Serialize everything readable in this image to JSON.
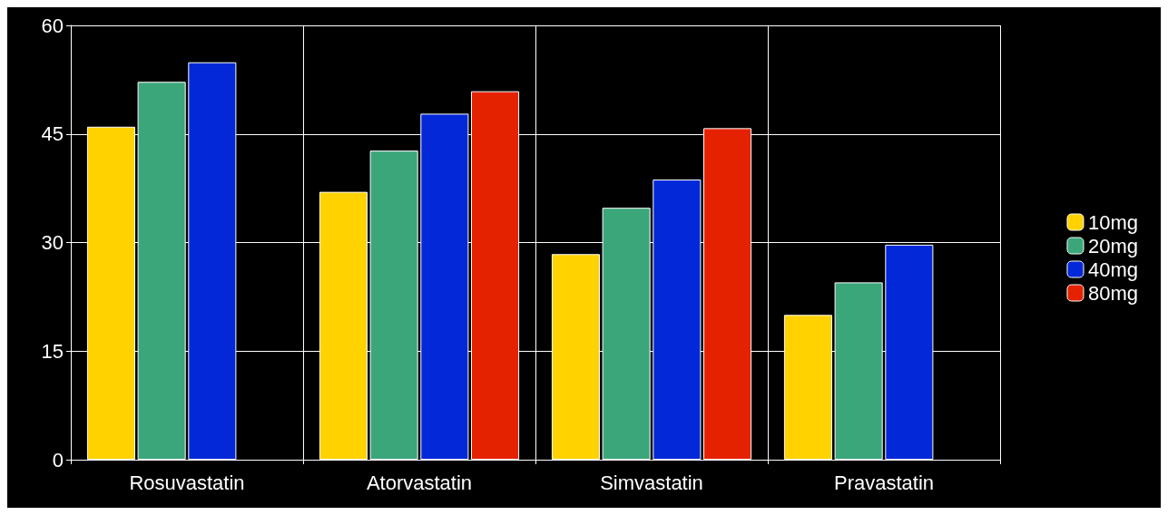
{
  "chart_data": {
    "type": "bar",
    "categories": [
      "Rosuvastatin",
      "Atorvastatin",
      "Simvastatin",
      "Pravastatin"
    ],
    "series": [
      {
        "name": "10mg",
        "color": "#ffd200",
        "values": [
          46,
          37,
          28.4,
          20
        ]
      },
      {
        "name": "20mg",
        "color": "#3ca67b",
        "values": [
          52.2,
          42.7,
          34.8,
          24.5
        ]
      },
      {
        "name": "40mg",
        "color": "#0228d8",
        "values": [
          54.9,
          47.8,
          38.7,
          29.7
        ]
      },
      {
        "name": "80mg",
        "color": "#e52200",
        "values": [
          null,
          50.9,
          45.8,
          null
        ]
      }
    ],
    "ylim": [
      0,
      60
    ],
    "yticks": [
      0,
      15,
      30,
      45,
      60
    ],
    "grid": true,
    "legend": "right"
  }
}
